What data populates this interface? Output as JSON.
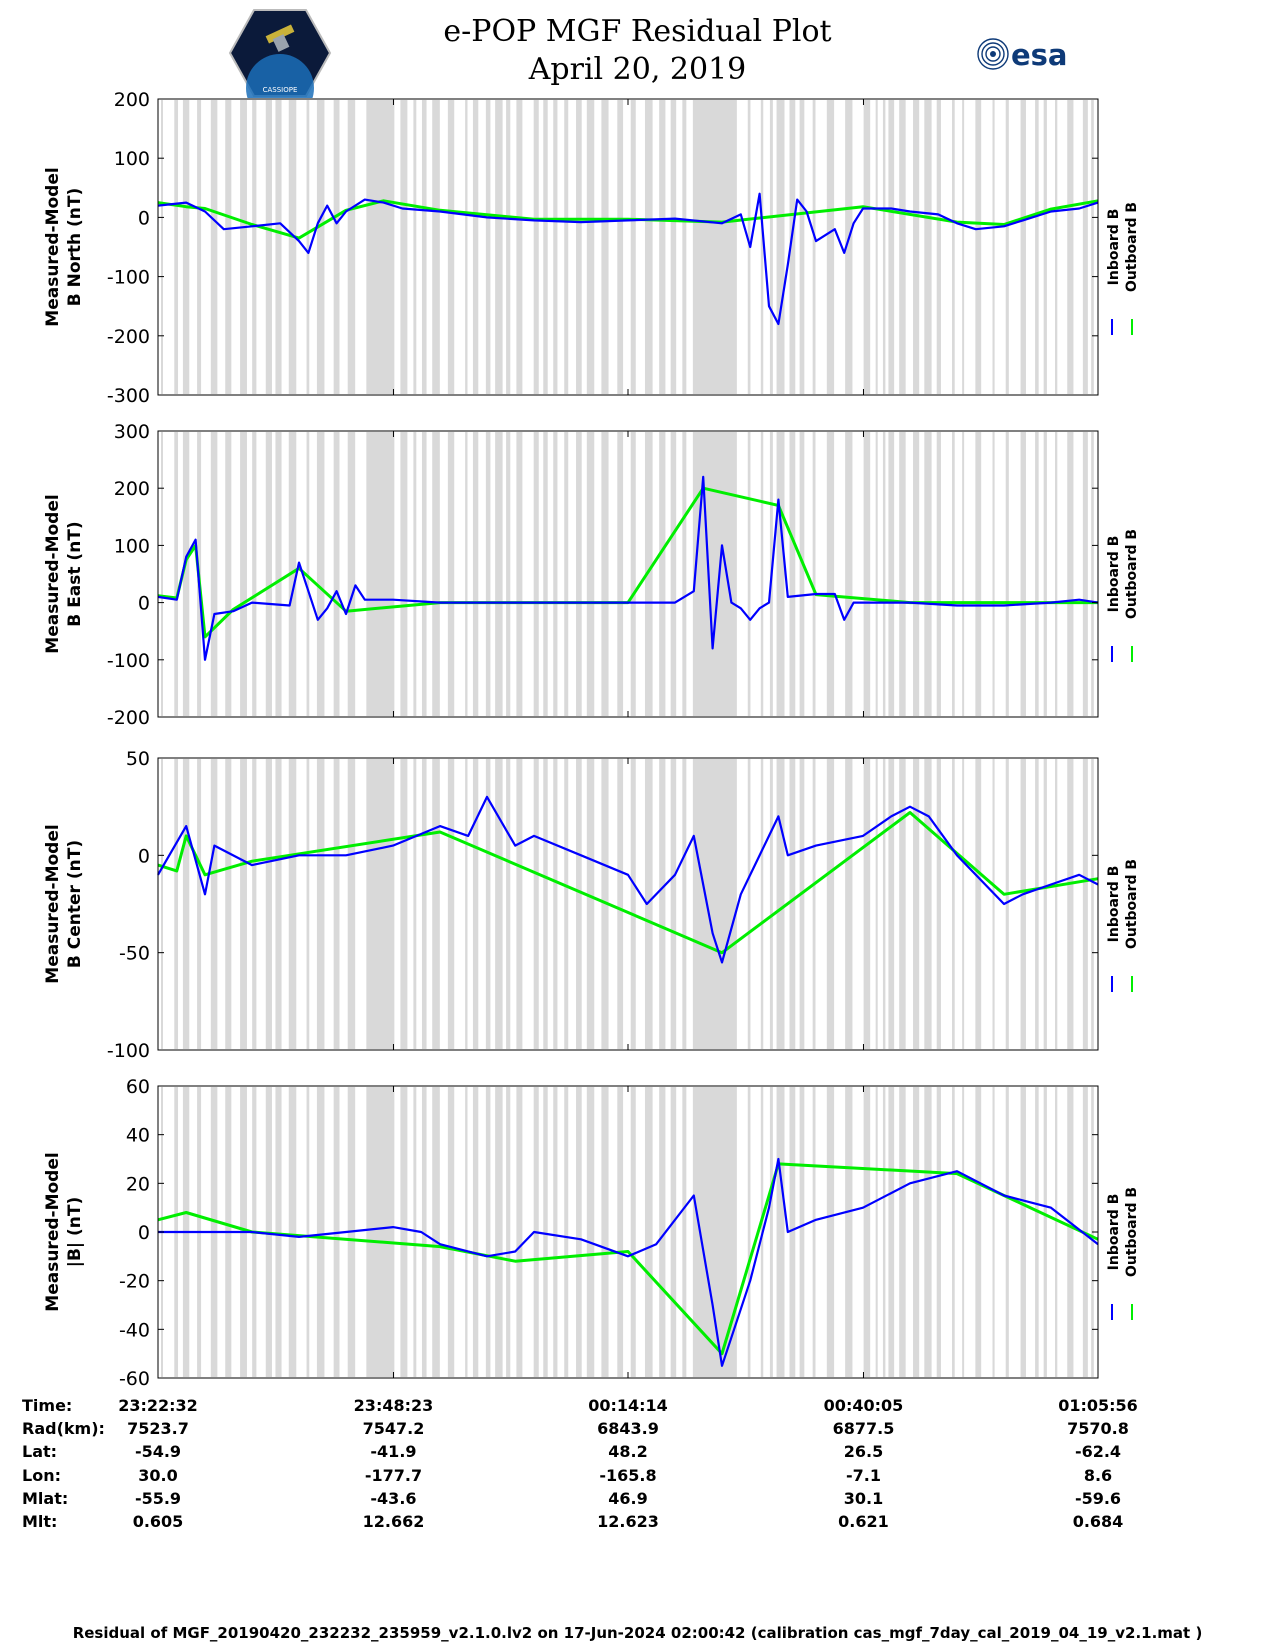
{
  "header": {
    "title_line1": "e-POP MGF Residual Plot",
    "title_line2": "April 20, 2019",
    "left_logo_text": "CASSIOPE",
    "right_logo_text": "esa"
  },
  "colors": {
    "inboard": "#0000ff",
    "outboard": "#00ee00",
    "gap_shading": "#d9d9d9"
  },
  "chart_data": [
    {
      "type": "line",
      "ylabel": [
        "Measured-Model",
        "B North (nT)"
      ],
      "ylim": [
        -300,
        200
      ],
      "yticks": [
        200,
        100,
        0,
        -100,
        -200,
        -300
      ],
      "legend": [
        "Inboard B",
        "Outboard B"
      ],
      "series": [
        {
          "name": "Inboard B",
          "values": [
            [
              0,
              20
            ],
            [
              3,
              25
            ],
            [
              5,
              10
            ],
            [
              7,
              -20
            ],
            [
              10,
              -15
            ],
            [
              13,
              -10
            ],
            [
              15,
              -40
            ],
            [
              16,
              -60
            ],
            [
              17,
              -10
            ],
            [
              18,
              20
            ],
            [
              19,
              -10
            ],
            [
              20,
              10
            ],
            [
              22,
              30
            ],
            [
              24,
              25
            ],
            [
              26,
              15
            ],
            [
              30,
              10
            ],
            [
              35,
              0
            ],
            [
              40,
              -5
            ],
            [
              45,
              -8
            ],
            [
              50,
              -5
            ],
            [
              55,
              -2
            ],
            [
              60,
              -10
            ],
            [
              62,
              5
            ],
            [
              63,
              -50
            ],
            [
              64,
              40
            ],
            [
              65,
              -150
            ],
            [
              66,
              -180
            ],
            [
              67,
              -80
            ],
            [
              68,
              30
            ],
            [
              69,
              10
            ],
            [
              70,
              -40
            ],
            [
              72,
              -20
            ],
            [
              73,
              -60
            ],
            [
              74,
              -10
            ],
            [
              75,
              15
            ],
            [
              78,
              15
            ],
            [
              80,
              10
            ],
            [
              83,
              5
            ],
            [
              85,
              -10
            ],
            [
              87,
              -20
            ],
            [
              90,
              -15
            ],
            [
              92,
              -5
            ],
            [
              95,
              10
            ],
            [
              98,
              15
            ],
            [
              100,
              25
            ]
          ]
        },
        {
          "name": "Outboard B",
          "values": [
            [
              0,
              25
            ],
            [
              3,
              18
            ],
            [
              5,
              15
            ],
            [
              10,
              -12
            ],
            [
              15,
              -35
            ],
            [
              20,
              12
            ],
            [
              24,
              28
            ],
            [
              30,
              12
            ],
            [
              40,
              -3
            ],
            [
              50,
              -3
            ],
            [
              60,
              -8
            ],
            [
              75,
              18
            ],
            [
              85,
              -8
            ],
            [
              90,
              -12
            ],
            [
              95,
              14
            ],
            [
              100,
              28
            ]
          ]
        }
      ]
    },
    {
      "type": "line",
      "ylabel": [
        "Measured-Model",
        "B East (nT)"
      ],
      "ylim": [
        -200,
        300
      ],
      "yticks": [
        300,
        200,
        100,
        0,
        -100,
        -200
      ],
      "legend": [
        "Inboard B",
        "Outboard B"
      ],
      "series": [
        {
          "name": "Inboard B",
          "values": [
            [
              0,
              10
            ],
            [
              2,
              5
            ],
            [
              3,
              80
            ],
            [
              4,
              110
            ],
            [
              5,
              -100
            ],
            [
              6,
              -20
            ],
            [
              8,
              -15
            ],
            [
              10,
              0
            ],
            [
              14,
              -5
            ],
            [
              15,
              70
            ],
            [
              16,
              20
            ],
            [
              17,
              -30
            ],
            [
              18,
              -10
            ],
            [
              19,
              20
            ],
            [
              20,
              -20
            ],
            [
              21,
              30
            ],
            [
              22,
              5
            ],
            [
              25,
              5
            ],
            [
              30,
              0
            ],
            [
              40,
              0
            ],
            [
              50,
              0
            ],
            [
              55,
              0
            ],
            [
              57,
              20
            ],
            [
              58,
              220
            ],
            [
              59,
              -80
            ],
            [
              60,
              100
            ],
            [
              61,
              0
            ],
            [
              62,
              -10
            ],
            [
              63,
              -30
            ],
            [
              64,
              -10
            ],
            [
              65,
              0
            ],
            [
              66,
              180
            ],
            [
              67,
              10
            ],
            [
              70,
              15
            ],
            [
              72,
              15
            ],
            [
              73,
              -30
            ],
            [
              74,
              0
            ],
            [
              80,
              0
            ],
            [
              85,
              -5
            ],
            [
              90,
              -5
            ],
            [
              95,
              0
            ],
            [
              98,
              5
            ],
            [
              100,
              0
            ]
          ]
        },
        {
          "name": "Outboard B",
          "values": [
            [
              0,
              12
            ],
            [
              2,
              8
            ],
            [
              3,
              75
            ],
            [
              4,
              100
            ],
            [
              5,
              -60
            ],
            [
              8,
              -12
            ],
            [
              15,
              60
            ],
            [
              20,
              -15
            ],
            [
              30,
              0
            ],
            [
              50,
              0
            ],
            [
              58,
              200
            ],
            [
              66,
              170
            ],
            [
              70,
              14
            ],
            [
              80,
              0
            ],
            [
              100,
              0
            ]
          ]
        }
      ]
    },
    {
      "type": "line",
      "ylabel": [
        "Measured-Model",
        "B Center (nT)"
      ],
      "ylim": [
        -100,
        50
      ],
      "yticks": [
        50,
        0,
        -50,
        -100
      ],
      "legend": [
        "Inboard B",
        "Outboard B"
      ],
      "series": [
        {
          "name": "Inboard B",
          "values": [
            [
              0,
              -10
            ],
            [
              3,
              15
            ],
            [
              5,
              -20
            ],
            [
              6,
              5
            ],
            [
              10,
              -5
            ],
            [
              15,
              0
            ],
            [
              20,
              0
            ],
            [
              25,
              5
            ],
            [
              30,
              15
            ],
            [
              33,
              10
            ],
            [
              35,
              30
            ],
            [
              38,
              5
            ],
            [
              40,
              10
            ],
            [
              45,
              0
            ],
            [
              50,
              -10
            ],
            [
              52,
              -25
            ],
            [
              55,
              -10
            ],
            [
              57,
              10
            ],
            [
              59,
              -40
            ],
            [
              60,
              -55
            ],
            [
              62,
              -20
            ],
            [
              65,
              10
            ],
            [
              66,
              20
            ],
            [
              67,
              0
            ],
            [
              70,
              5
            ],
            [
              75,
              10
            ],
            [
              78,
              20
            ],
            [
              80,
              25
            ],
            [
              82,
              20
            ],
            [
              85,
              0
            ],
            [
              88,
              -15
            ],
            [
              90,
              -25
            ],
            [
              92,
              -20
            ],
            [
              95,
              -15
            ],
            [
              98,
              -10
            ],
            [
              100,
              -15
            ]
          ]
        },
        {
          "name": "Outboard B",
          "values": [
            [
              0,
              -5
            ],
            [
              2,
              -8
            ],
            [
              3,
              10
            ],
            [
              5,
              -10
            ],
            [
              10,
              -3
            ],
            [
              30,
              12
            ],
            [
              60,
              -50
            ],
            [
              80,
              22
            ],
            [
              90,
              -20
            ],
            [
              100,
              -12
            ]
          ]
        }
      ]
    },
    {
      "type": "line",
      "ylabel": [
        "Measured-Model",
        "|B| (nT)"
      ],
      "ylim": [
        -60,
        60
      ],
      "yticks": [
        60,
        40,
        20,
        0,
        -20,
        -40,
        -60
      ],
      "legend": [
        "Inboard B",
        "Outboard B"
      ],
      "series": [
        {
          "name": "Inboard B",
          "values": [
            [
              0,
              0
            ],
            [
              10,
              0
            ],
            [
              15,
              -2
            ],
            [
              20,
              0
            ],
            [
              25,
              2
            ],
            [
              28,
              0
            ],
            [
              30,
              -5
            ],
            [
              35,
              -10
            ],
            [
              38,
              -8
            ],
            [
              40,
              0
            ],
            [
              45,
              -3
            ],
            [
              50,
              -10
            ],
            [
              53,
              -5
            ],
            [
              57,
              15
            ],
            [
              59,
              -30
            ],
            [
              60,
              -55
            ],
            [
              63,
              -20
            ],
            [
              65,
              10
            ],
            [
              66,
              30
            ],
            [
              67,
              0
            ],
            [
              70,
              5
            ],
            [
              75,
              10
            ],
            [
              80,
              20
            ],
            [
              85,
              25
            ],
            [
              90,
              15
            ],
            [
              95,
              10
            ],
            [
              100,
              -5
            ]
          ]
        },
        {
          "name": "Outboard B",
          "values": [
            [
              0,
              5
            ],
            [
              3,
              8
            ],
            [
              10,
              0
            ],
            [
              30,
              -6
            ],
            [
              38,
              -12
            ],
            [
              50,
              -8
            ],
            [
              60,
              -50
            ],
            [
              66,
              28
            ],
            [
              85,
              24
            ],
            [
              100,
              -3
            ]
          ]
        }
      ]
    }
  ],
  "x_axis": {
    "ticks": [
      {
        "time": "23:22:32",
        "rad": "7523.7",
        "lat": "-54.9",
        "lon": "30.0",
        "mlat": "-55.9",
        "mlt": "0.605"
      },
      {
        "time": "23:48:23",
        "rad": "7547.2",
        "lat": "-41.9",
        "lon": "-177.7",
        "mlat": "-43.6",
        "mlt": "12.662"
      },
      {
        "time": "00:14:14",
        "rad": "6843.9",
        "lat": "48.2",
        "lon": "-165.8",
        "mlat": "46.9",
        "mlt": "12.623"
      },
      {
        "time": "00:40:05",
        "rad": "6877.5",
        "lat": "26.5",
        "lon": "-7.1",
        "mlat": "30.1",
        "mlt": "0.621"
      },
      {
        "time": "01:05:56",
        "rad": "7570.8",
        "lat": "-62.4",
        "lon": "8.6",
        "mlat": "-59.6",
        "mlt": "0.684"
      }
    ],
    "row_labels": {
      "time": "Time:",
      "rad": "Rad(km):",
      "lat": "Lat:",
      "lon": "Lon:",
      "mlat": "Mlat:",
      "mlt": "Mlt:"
    }
  },
  "footer": "Residual of MGF_20190420_232232_235959_v2.1.0.lv2 on 17-Jun-2024 02:00:42 (calibration cas_mgf_7day_cal_2019_04_19_v2.1.mat )"
}
